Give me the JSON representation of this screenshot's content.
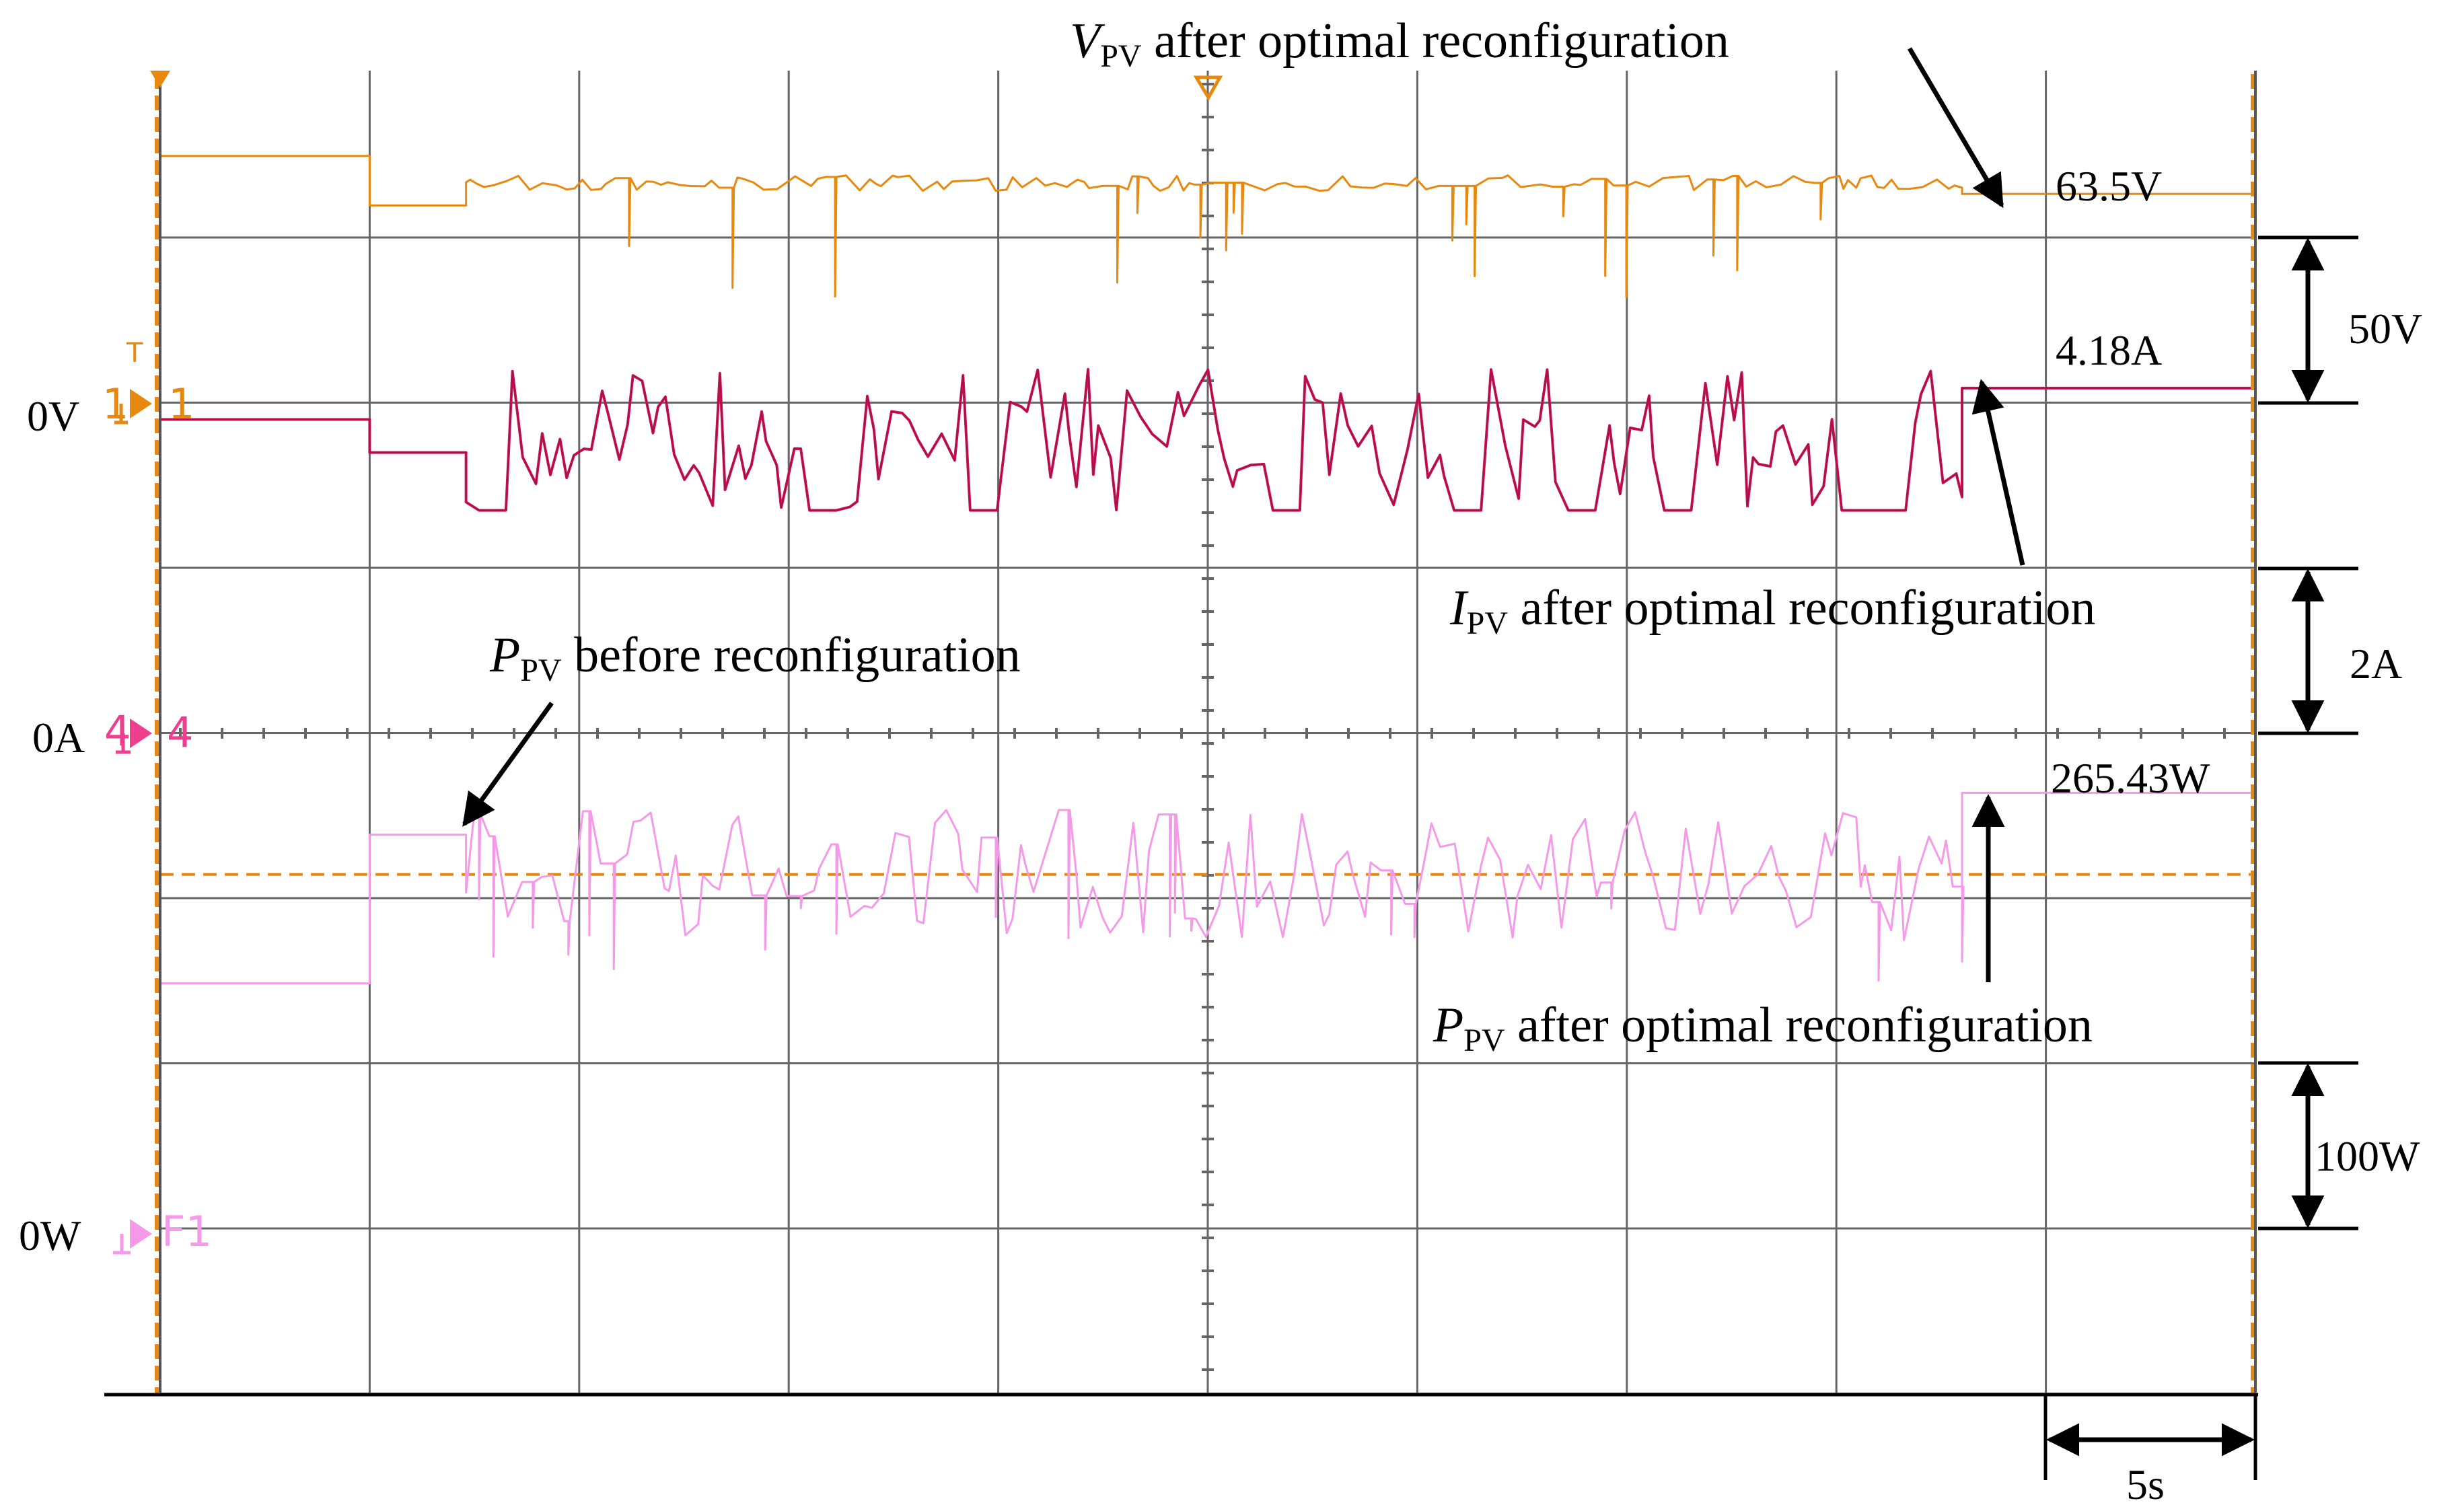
{
  "chart_data": {
    "type": "line",
    "title": "",
    "xlabel": "",
    "ylabel": "",
    "x_unit": "s",
    "x_range": [
      0,
      50
    ],
    "time_per_div": "5s",
    "grid": true,
    "divisions": {
      "horizontal": 10,
      "vertical": 8
    },
    "channels": [
      {
        "id": "1",
        "name": "VPV",
        "ground_label": "0V",
        "ground_marker": "1",
        "trigger_marker": "T",
        "scale_label": "50V",
        "units_per_div": 50,
        "color": "#e8890f"
      },
      {
        "id": "4",
        "name": "IPV",
        "ground_label": "0A",
        "ground_marker": "4",
        "scale_label": "2A",
        "units_per_div": 2,
        "color": "#d4145a"
      },
      {
        "id": "F1",
        "name": "PPV",
        "ground_label": "0W",
        "ground_marker": "F1",
        "scale_label": "100W",
        "units_per_div": 100,
        "color": "#f59ae8"
      }
    ],
    "series": [
      {
        "name": "VPV",
        "unit": "V",
        "segments": [
          {
            "t0": 0,
            "t1": 5,
            "value": 75,
            "kind": "flat"
          },
          {
            "t0": 5,
            "t1": 7.3,
            "value": 60,
            "kind": "flat"
          },
          {
            "t0": 7.3,
            "t1": 43,
            "value": 67,
            "kind": "fluctuating",
            "min": 30,
            "max": 70
          },
          {
            "t0": 43,
            "t1": 50,
            "value": 63.5,
            "kind": "flat"
          }
        ]
      },
      {
        "name": "IPV",
        "unit": "A",
        "segments": [
          {
            "t0": 0,
            "t1": 5,
            "value": 3.8,
            "kind": "flat"
          },
          {
            "t0": 5,
            "t1": 7.3,
            "value": 3.4,
            "kind": "flat"
          },
          {
            "t0": 7.3,
            "t1": 43,
            "value": 2.8,
            "kind": "fluctuating",
            "min": 2.7,
            "max": 5.0
          },
          {
            "t0": 43,
            "t1": 50,
            "value": 4.18,
            "kind": "flat"
          }
        ]
      },
      {
        "name": "PPV",
        "unit": "W",
        "segments": [
          {
            "t0": 0,
            "t1": 5,
            "value": 150,
            "kind": "flat"
          },
          {
            "t0": 5,
            "t1": 7.3,
            "value": 240,
            "kind": "flat"
          },
          {
            "t0": 7.3,
            "t1": 43,
            "value": 205,
            "kind": "fluctuating",
            "min": 150,
            "max": 255
          },
          {
            "t0": 43,
            "t1": 50,
            "value": 265.43,
            "kind": "flat"
          }
        ]
      }
    ],
    "reference_line": {
      "value_w": 216,
      "style": "dashed",
      "color": "#e8890f"
    },
    "annotations": [
      {
        "var": "V",
        "sub": "PV",
        "text": " after optimal reconfiguration"
      },
      {
        "var": "I",
        "sub": "PV",
        "text": " after optimal reconfiguration"
      },
      {
        "var": "P",
        "sub": "PV",
        "text": " before reconfiguration"
      },
      {
        "var": "P",
        "sub": "PV",
        "text": " after optimal reconfiguration"
      }
    ],
    "value_labels": [
      "63.5V",
      "4.18A",
      "265.43W"
    ],
    "time_scale_label": "5s"
  }
}
